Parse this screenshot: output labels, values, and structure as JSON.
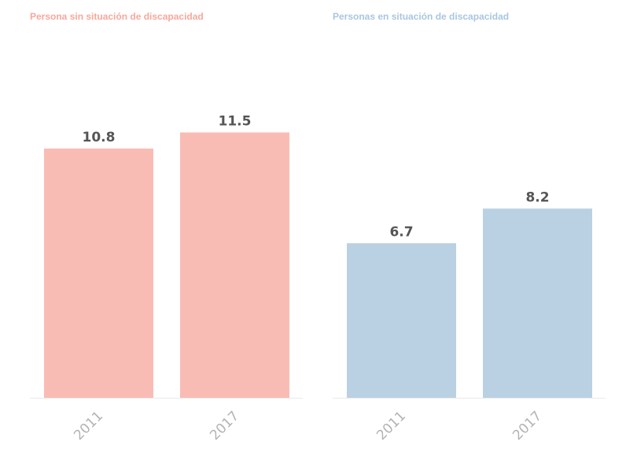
{
  "chart_data": [
    {
      "type": "bar",
      "title": "Persona sin situación de discapacidad",
      "categories": [
        "2011",
        "2017"
      ],
      "values": [
        10.8,
        11.5
      ],
      "data_labels": [
        "10.8",
        "11.5"
      ],
      "ylim": [
        0,
        12
      ],
      "grid": false,
      "color": "#f9bcb4",
      "title_color": "#f6a89c"
    },
    {
      "type": "bar",
      "title": "Personas en situación de discapacidad",
      "categories": [
        "2011",
        "2017"
      ],
      "values": [
        6.7,
        8.2
      ],
      "data_labels": [
        "6.7",
        "8.2"
      ],
      "ylim": [
        0,
        12
      ],
      "grid": false,
      "color": "#bad0e3",
      "title_color": "#a9c6df"
    }
  ]
}
